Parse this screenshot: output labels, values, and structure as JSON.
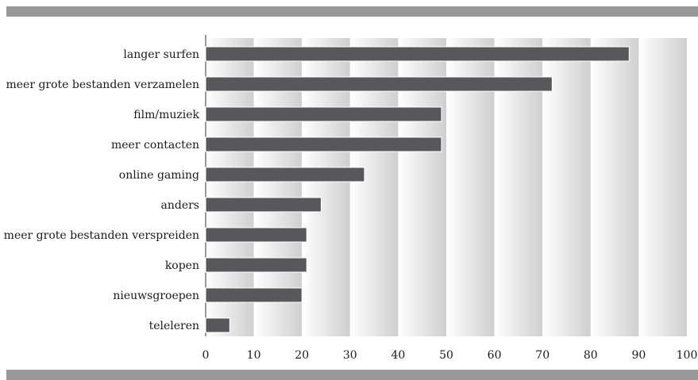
{
  "chart_data": {
    "type": "bar",
    "orientation": "horizontal",
    "categories": [
      "langer surfen",
      "meer grote bestanden verzamelen",
      "film/muziek",
      "meer contacten",
      "online gaming",
      "anders",
      "meer grote bestanden verspreiden",
      "kopen",
      "nieuwsgroepen",
      "teleleren"
    ],
    "values": [
      88,
      72,
      49,
      49,
      33,
      24,
      21,
      21,
      20,
      5
    ],
    "xlim": [
      0,
      100
    ],
    "xticks": [
      "0",
      "10",
      "20",
      "30",
      "40",
      "50",
      "60",
      "70",
      "80",
      "90",
      "100"
    ],
    "title": "",
    "xlabel": "",
    "ylabel": "",
    "grid": "vertical gradient bands",
    "colors": {
      "bar": "#58585a",
      "bar_edge": "#ffffff",
      "rule": "#999999",
      "band_light": "#ffffff",
      "band_dark": "#cfcfcf"
    }
  }
}
